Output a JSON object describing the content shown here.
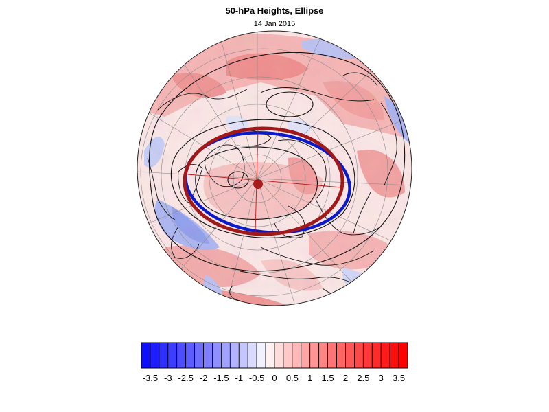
{
  "figure": {
    "title": "50-hPa Heights, Ellipse",
    "date": "14 Jan 2015"
  },
  "colorbar": {
    "levels": [
      -3.5,
      -3.25,
      -3,
      -2.75,
      -2.5,
      -2.25,
      -2,
      -1.75,
      -1.5,
      -1.25,
      -1,
      -0.75,
      -0.5,
      -0.25,
      0,
      0.25,
      0.5,
      0.75,
      1,
      1.25,
      1.5,
      1.75,
      2,
      2.25,
      2.5,
      2.75,
      3,
      3.25,
      3.5,
      3.75
    ],
    "tick_labels": [
      "-3.5",
      "-3",
      "-2.5",
      "-2",
      "-1.5",
      "-1",
      "-0.5",
      "0",
      "0.5",
      "1",
      "1.5",
      "2",
      "2.5",
      "3",
      "3.5"
    ],
    "negative_color": "#0000ff",
    "positive_color": "#ff0000",
    "neutral_color": "#ffffff"
  },
  "map": {
    "projection": "polar stereographic, north pole",
    "ellipse_colors": {
      "blue_ellipse": "#0a1ac8",
      "red_ellipse": "#a01818",
      "center_dot": "#a81c1c"
    }
  }
}
